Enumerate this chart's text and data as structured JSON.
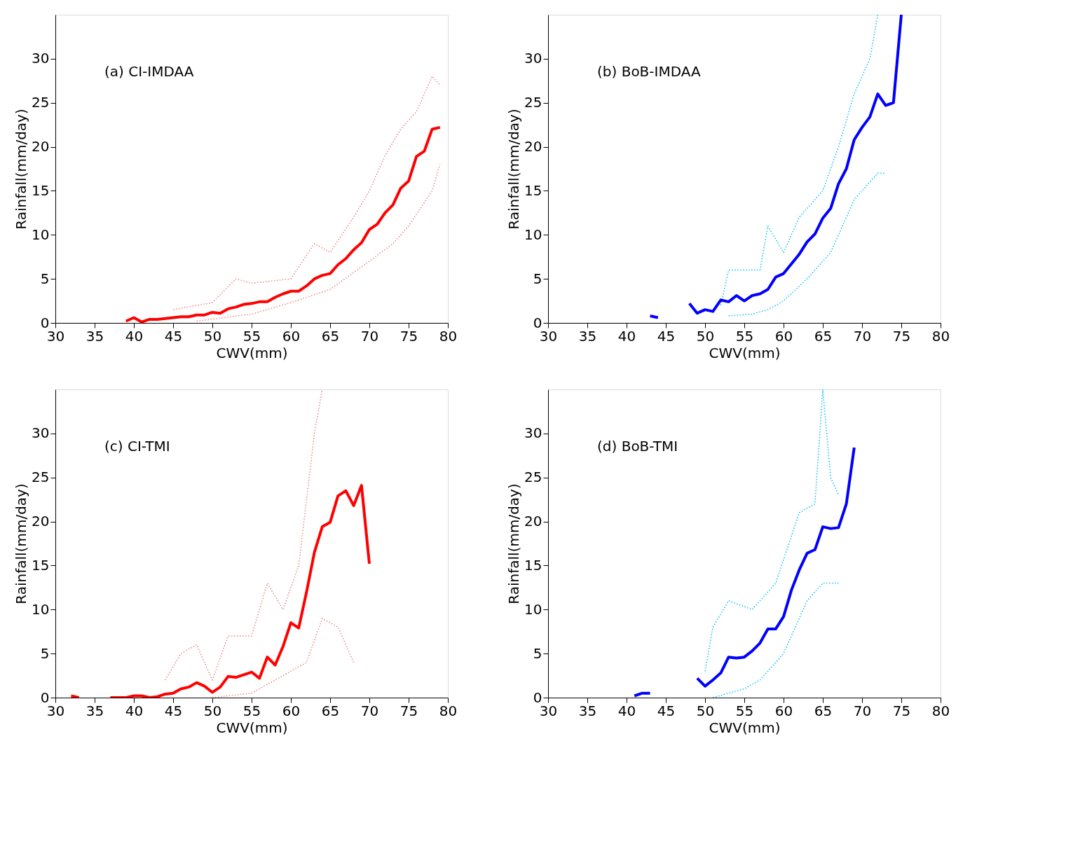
{
  "chart_data": [
    {
      "type": "line",
      "annotations": [
        "(a) CI-IMDAA"
      ],
      "xlabel": "CWV(mm)",
      "ylabel": "Rainfall(mm/day)",
      "xlim": [
        30,
        80
      ],
      "xticks": [
        30,
        35,
        40,
        45,
        50,
        55,
        60,
        65,
        70,
        75,
        80
      ],
      "ylim": [
        0,
        35
      ],
      "yticks": [
        0,
        5,
        10,
        15,
        20,
        25,
        30
      ],
      "grid": false,
      "series": [
        {
          "color": "#f08080",
          "line_style": "dotted",
          "x": [
            45,
            50,
            53,
            55,
            60,
            63,
            65,
            68,
            70,
            72,
            74,
            76,
            78,
            79
          ],
          "values": [
            1.5,
            2.3,
            5,
            4.5,
            5,
            9,
            8,
            12,
            15,
            19,
            22,
            24,
            28,
            27
          ]
        },
        {
          "color": "#f08080",
          "line_style": "dotted",
          "x": [
            48,
            55,
            60,
            65,
            70,
            73,
            75,
            78,
            79
          ],
          "values": [
            0.2,
            1,
            2.3,
            3.8,
            7,
            9,
            11,
            15,
            18
          ]
        },
        {
          "color": "#ff0000",
          "line_style": "solid",
          "x": [
            39,
            40,
            41,
            42,
            43,
            44,
            45,
            46,
            47,
            48,
            49,
            50,
            51,
            52,
            53,
            54,
            55,
            56,
            57,
            58,
            59,
            60,
            61,
            62,
            63,
            64,
            65,
            66,
            67,
            68,
            69,
            70,
            71,
            72,
            73,
            74,
            75,
            76,
            77,
            78,
            79
          ],
          "values": [
            0.2,
            0.6,
            0.1,
            0.4,
            0.4,
            0.5,
            0.6,
            0.7,
            0.7,
            0.9,
            0.9,
            1.2,
            1.1,
            1.6,
            1.8,
            2.1,
            2.2,
            2.4,
            2.4,
            2.9,
            3.3,
            3.6,
            3.6,
            4.2,
            5.0,
            5.4,
            5.6,
            6.6,
            7.3,
            8.3,
            9.1,
            10.6,
            11.2,
            12.5,
            13.4,
            15.3,
            16.1,
            18.9,
            19.5,
            22.0,
            22.2
          ]
        }
      ]
    },
    {
      "type": "line",
      "annotations": [
        "(b) BoB-IMDAA"
      ],
      "xlabel": "CWV(mm)",
      "ylabel": "Rainfall(mm/day)",
      "xlim": [
        30,
        80
      ],
      "xticks": [
        30,
        35,
        40,
        45,
        50,
        55,
        60,
        65,
        70,
        75,
        80
      ],
      "ylim": [
        0,
        35
      ],
      "yticks": [
        0,
        5,
        10,
        15,
        20,
        25,
        30
      ],
      "grid": false,
      "series": [
        {
          "color": "#00bfff",
          "line_style": "dotted",
          "x": [
            52,
            53,
            57,
            58,
            60,
            62,
            65,
            67,
            69,
            71,
            72
          ],
          "values": [
            2,
            6,
            6,
            11,
            8,
            12,
            15,
            20,
            26,
            30,
            35
          ]
        },
        {
          "color": "#00bfff",
          "line_style": "dotted",
          "x": [
            53,
            56,
            58,
            60,
            63,
            66,
            69,
            72,
            73
          ],
          "values": [
            0.8,
            1,
            1.5,
            2.5,
            5,
            8,
            14,
            17,
            17
          ]
        },
        {
          "color": "#0000ff",
          "line_style": "solid",
          "x": [
            43,
            44
          ],
          "values": [
            0.8,
            0.6
          ]
        },
        {
          "color": "#0000ff",
          "line_style": "solid",
          "x": [
            48,
            49,
            50,
            51,
            52,
            53,
            54,
            55,
            56,
            57,
            58,
            59,
            60,
            61,
            62,
            63,
            64,
            65,
            66,
            67,
            68,
            69,
            70,
            71,
            72,
            73,
            74,
            75
          ],
          "values": [
            2.2,
            1.1,
            1.5,
            1.3,
            2.6,
            2.4,
            3.1,
            2.5,
            3.1,
            3.3,
            3.8,
            5.2,
            5.6,
            6.7,
            7.8,
            9.2,
            10.1,
            11.9,
            13.0,
            15.8,
            17.5,
            20.8,
            22.2,
            23.4,
            26.0,
            24.7,
            25.0,
            35
          ]
        }
      ]
    },
    {
      "type": "line",
      "annotations": [
        "(c) CI-TMI"
      ],
      "xlabel": "CWV(mm)",
      "ylabel": "Rainfall(mm/day)",
      "xlim": [
        30,
        80
      ],
      "xticks": [
        30,
        35,
        40,
        45,
        50,
        55,
        60,
        65,
        70,
        75,
        80
      ],
      "ylim": [
        0,
        35
      ],
      "yticks": [
        0,
        5,
        10,
        15,
        20,
        25,
        30
      ],
      "grid": false,
      "series": [
        {
          "color": "#f08080",
          "line_style": "dotted",
          "x": [
            44,
            46,
            48,
            50,
            52,
            55,
            57,
            59,
            61,
            63,
            64
          ],
          "values": [
            2,
            5,
            6,
            2,
            7,
            7,
            13,
            10,
            15,
            30,
            35
          ]
        },
        {
          "color": "#f08080",
          "line_style": "dotted",
          "x": [
            50,
            55,
            60,
            62,
            64,
            66,
            68
          ],
          "values": [
            0,
            0.5,
            3,
            4,
            9,
            8,
            4
          ]
        },
        {
          "color": "#ff0000",
          "line_style": "solid",
          "x": [
            32,
            33
          ],
          "values": [
            0.2,
            0
          ]
        },
        {
          "color": "#ff0000",
          "line_style": "solid",
          "x": [
            37,
            38,
            39,
            40,
            41,
            42,
            43,
            44,
            45,
            46,
            47,
            48,
            49,
            50,
            51,
            52,
            53,
            54,
            55,
            56,
            57,
            58,
            59,
            60,
            61,
            62,
            63,
            64,
            65,
            66,
            67,
            68,
            69,
            70
          ],
          "values": [
            0,
            0,
            0,
            0.2,
            0.2,
            0,
            0.1,
            0.4,
            0.5,
            1.0,
            1.2,
            1.7,
            1.3,
            0.6,
            1.2,
            2.4,
            2.3,
            2.6,
            2.9,
            2.2,
            4.6,
            3.7,
            5.8,
            8.5,
            7.9,
            12.0,
            16.5,
            19.4,
            19.9,
            22.9,
            23.5,
            21.8,
            24.1,
            15.2
          ]
        }
      ]
    },
    {
      "type": "line",
      "annotations": [
        "(d) BoB-TMI"
      ],
      "xlabel": "CWV(mm)",
      "ylabel": "Rainfall(mm/day)",
      "xlim": [
        30,
        80
      ],
      "xticks": [
        30,
        35,
        40,
        45,
        50,
        55,
        60,
        65,
        70,
        75,
        80
      ],
      "ylim": [
        0,
        35
      ],
      "yticks": [
        0,
        5,
        10,
        15,
        20,
        25,
        30
      ],
      "grid": false,
      "series": [
        {
          "color": "#00bfff",
          "line_style": "dotted",
          "x": [
            50,
            51,
            53,
            56,
            59,
            62,
            64,
            65,
            66,
            67
          ],
          "values": [
            3,
            8,
            11,
            10,
            13,
            21,
            22,
            35,
            25,
            23
          ]
        },
        {
          "color": "#00bfff",
          "line_style": "dotted",
          "x": [
            51,
            55,
            57,
            60,
            63,
            65,
            67
          ],
          "values": [
            0,
            1,
            2,
            5,
            11,
            13,
            13
          ]
        },
        {
          "color": "#0000ff",
          "line_style": "solid",
          "x": [
            41,
            42,
            43
          ],
          "values": [
            0.2,
            0.5,
            0.5
          ]
        },
        {
          "color": "#0000ff",
          "line_style": "solid",
          "x": [
            49,
            50,
            51,
            52,
            53,
            54,
            55,
            56,
            57,
            58,
            59,
            60,
            61,
            62,
            63,
            64,
            65,
            66,
            67,
            68,
            69
          ],
          "values": [
            2.2,
            1.3,
            2.0,
            2.8,
            4.6,
            4.5,
            4.6,
            5.3,
            6.2,
            7.8,
            7.8,
            9.2,
            12.2,
            14.5,
            16.4,
            16.8,
            19.4,
            19.2,
            19.3,
            22.0,
            28.4
          ]
        }
      ]
    }
  ]
}
